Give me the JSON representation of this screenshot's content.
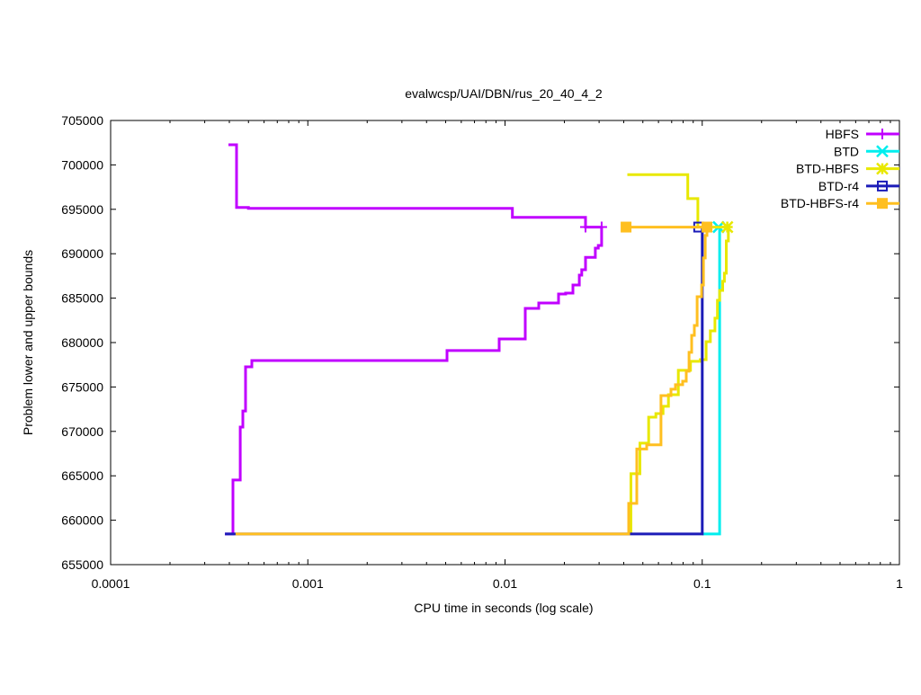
{
  "chart_data": {
    "type": "line",
    "title": "evalwcsp/UAI/DBN/rus_20_40_4_2",
    "xlabel": "CPU time in seconds (log scale)",
    "ylabel": "Problem lower and upper bounds",
    "xscale": "log",
    "xlim": [
      0.0001,
      1
    ],
    "ylim": [
      655000,
      705000
    ],
    "xticks": [
      {
        "v": 0.0001,
        "label": "0.0001"
      },
      {
        "v": 0.001,
        "label": "0.001"
      },
      {
        "v": 0.01,
        "label": "0.01"
      },
      {
        "v": 0.1,
        "label": "0.1"
      },
      {
        "v": 1,
        "label": "1"
      }
    ],
    "yticks": [
      655000,
      660000,
      665000,
      670000,
      675000,
      680000,
      685000,
      690000,
      695000,
      700000,
      705000
    ],
    "legend_position": "top-right",
    "grid": false,
    "series": [
      {
        "name": "HBFS",
        "color": "#c000ff",
        "marker": "plus",
        "upper": [
          [
            0.000396,
            702270
          ],
          [
            0.000435,
            695200
          ],
          [
            0.0005,
            695100
          ],
          [
            0.0109,
            694100
          ],
          [
            0.0256,
            693000
          ],
          [
            0.0309,
            693000
          ]
        ],
        "lower": [
          [
            0.00038,
            658450
          ],
          [
            0.000417,
            664520
          ],
          [
            0.000454,
            670490
          ],
          [
            0.000468,
            672300
          ],
          [
            0.000483,
            677270
          ],
          [
            0.00052,
            677980
          ],
          [
            0.00508,
            679100
          ],
          [
            0.00934,
            680400
          ],
          [
            0.01267,
            683850
          ],
          [
            0.01483,
            684450
          ],
          [
            0.01868,
            685470
          ],
          [
            0.0203,
            685570
          ],
          [
            0.0221,
            686480
          ],
          [
            0.0238,
            687590
          ],
          [
            0.0245,
            688200
          ],
          [
            0.0256,
            689600
          ],
          [
            0.0287,
            690630
          ],
          [
            0.0297,
            690930
          ],
          [
            0.0309,
            691030
          ],
          [
            0.0309,
            693000
          ]
        ],
        "markers": [
          [
            0.0256,
            693000
          ],
          [
            0.0309,
            693000
          ]
        ]
      },
      {
        "name": "BTD",
        "color": "#00eeee",
        "marker": "cross",
        "upper": [],
        "lower": [
          [
            0.1,
            658450
          ],
          [
            0.1225,
            658450
          ],
          [
            0.1225,
            693000
          ]
        ],
        "markers": [
          [
            0.121,
            693000
          ]
        ]
      },
      {
        "name": "BTD-HBFS",
        "color": "#e8e800",
        "marker": "star",
        "upper": [
          [
            0.0417,
            698900
          ],
          [
            0.0845,
            696200
          ],
          [
            0.095,
            693000
          ],
          [
            0.134,
            693000
          ]
        ],
        "lower": [
          [
            0.0435,
            658450
          ],
          [
            0.0435,
            665230
          ],
          [
            0.0483,
            668670
          ],
          [
            0.0535,
            671600
          ],
          [
            0.0582,
            672000
          ],
          [
            0.0633,
            672820
          ],
          [
            0.0674,
            674130
          ],
          [
            0.0757,
            676870
          ],
          [
            0.0872,
            677880
          ],
          [
            0.0978,
            678080
          ],
          [
            0.1047,
            680100
          ],
          [
            0.11,
            681320
          ],
          [
            0.116,
            682740
          ],
          [
            0.1195,
            684760
          ],
          [
            0.1225,
            685870
          ],
          [
            0.127,
            686890
          ],
          [
            0.1295,
            687800
          ],
          [
            0.1325,
            691440
          ],
          [
            0.1357,
            693000
          ]
        ],
        "markers": [
          [
            0.134,
            693000
          ]
        ]
      },
      {
        "name": "BTD-r4",
        "color": "#1c1cb8",
        "marker": "square-open",
        "upper": [],
        "lower": [
          [
            0.00038,
            658450
          ],
          [
            0.1,
            658450
          ],
          [
            0.1,
            693000
          ]
        ],
        "markers": [
          [
            0.096,
            693000
          ]
        ]
      },
      {
        "name": "BTD-HBFS-r4",
        "color": "#ffbf20",
        "marker": "square-filled",
        "upper": [
          [
            0.0411,
            693000
          ],
          [
            0.1057,
            693000
          ]
        ],
        "lower": [
          [
            0.00043,
            658450
          ],
          [
            0.0424,
            658450
          ],
          [
            0.0424,
            661890
          ],
          [
            0.0466,
            668020
          ],
          [
            0.0523,
            668480
          ],
          [
            0.0618,
            674030
          ],
          [
            0.0694,
            674750
          ],
          [
            0.0732,
            675250
          ],
          [
            0.0796,
            675650
          ],
          [
            0.083,
            676770
          ],
          [
            0.0857,
            678900
          ],
          [
            0.0884,
            680810
          ],
          [
            0.0912,
            681920
          ],
          [
            0.0942,
            685160
          ],
          [
            0.0993,
            686480
          ],
          [
            0.1014,
            689520
          ],
          [
            0.1036,
            692050
          ],
          [
            0.1057,
            693000
          ]
        ],
        "markers": [
          [
            0.0411,
            693000
          ],
          [
            0.1057,
            693000
          ]
        ]
      }
    ]
  }
}
